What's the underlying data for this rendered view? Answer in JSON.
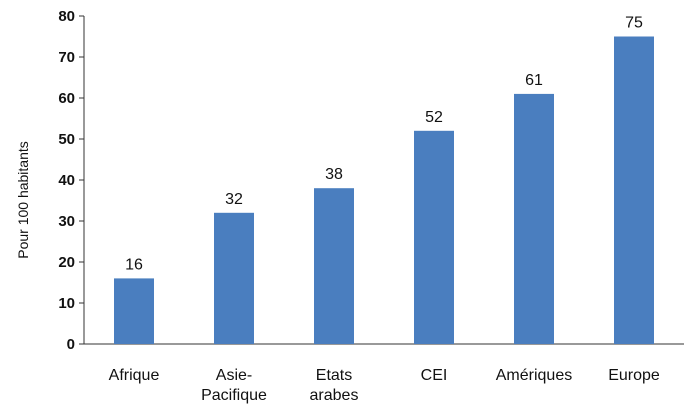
{
  "chart_data": {
    "type": "bar",
    "title": "",
    "xlabel": "",
    "ylabel": "Pour 100 habitants",
    "ylim": [
      0,
      80
    ],
    "yticks": [
      0,
      10,
      20,
      30,
      40,
      50,
      60,
      70,
      80
    ],
    "grid": false,
    "legend": "none",
    "bar_color": "#4a7ebf",
    "categories": [
      [
        "Afrique"
      ],
      [
        "Asie-",
        "Pacifique"
      ],
      [
        "Etats",
        "arabes"
      ],
      [
        "CEI"
      ],
      [
        "Amériques"
      ],
      [
        "Europe"
      ]
    ],
    "values": [
      16,
      32,
      38,
      52,
      61,
      75
    ]
  }
}
